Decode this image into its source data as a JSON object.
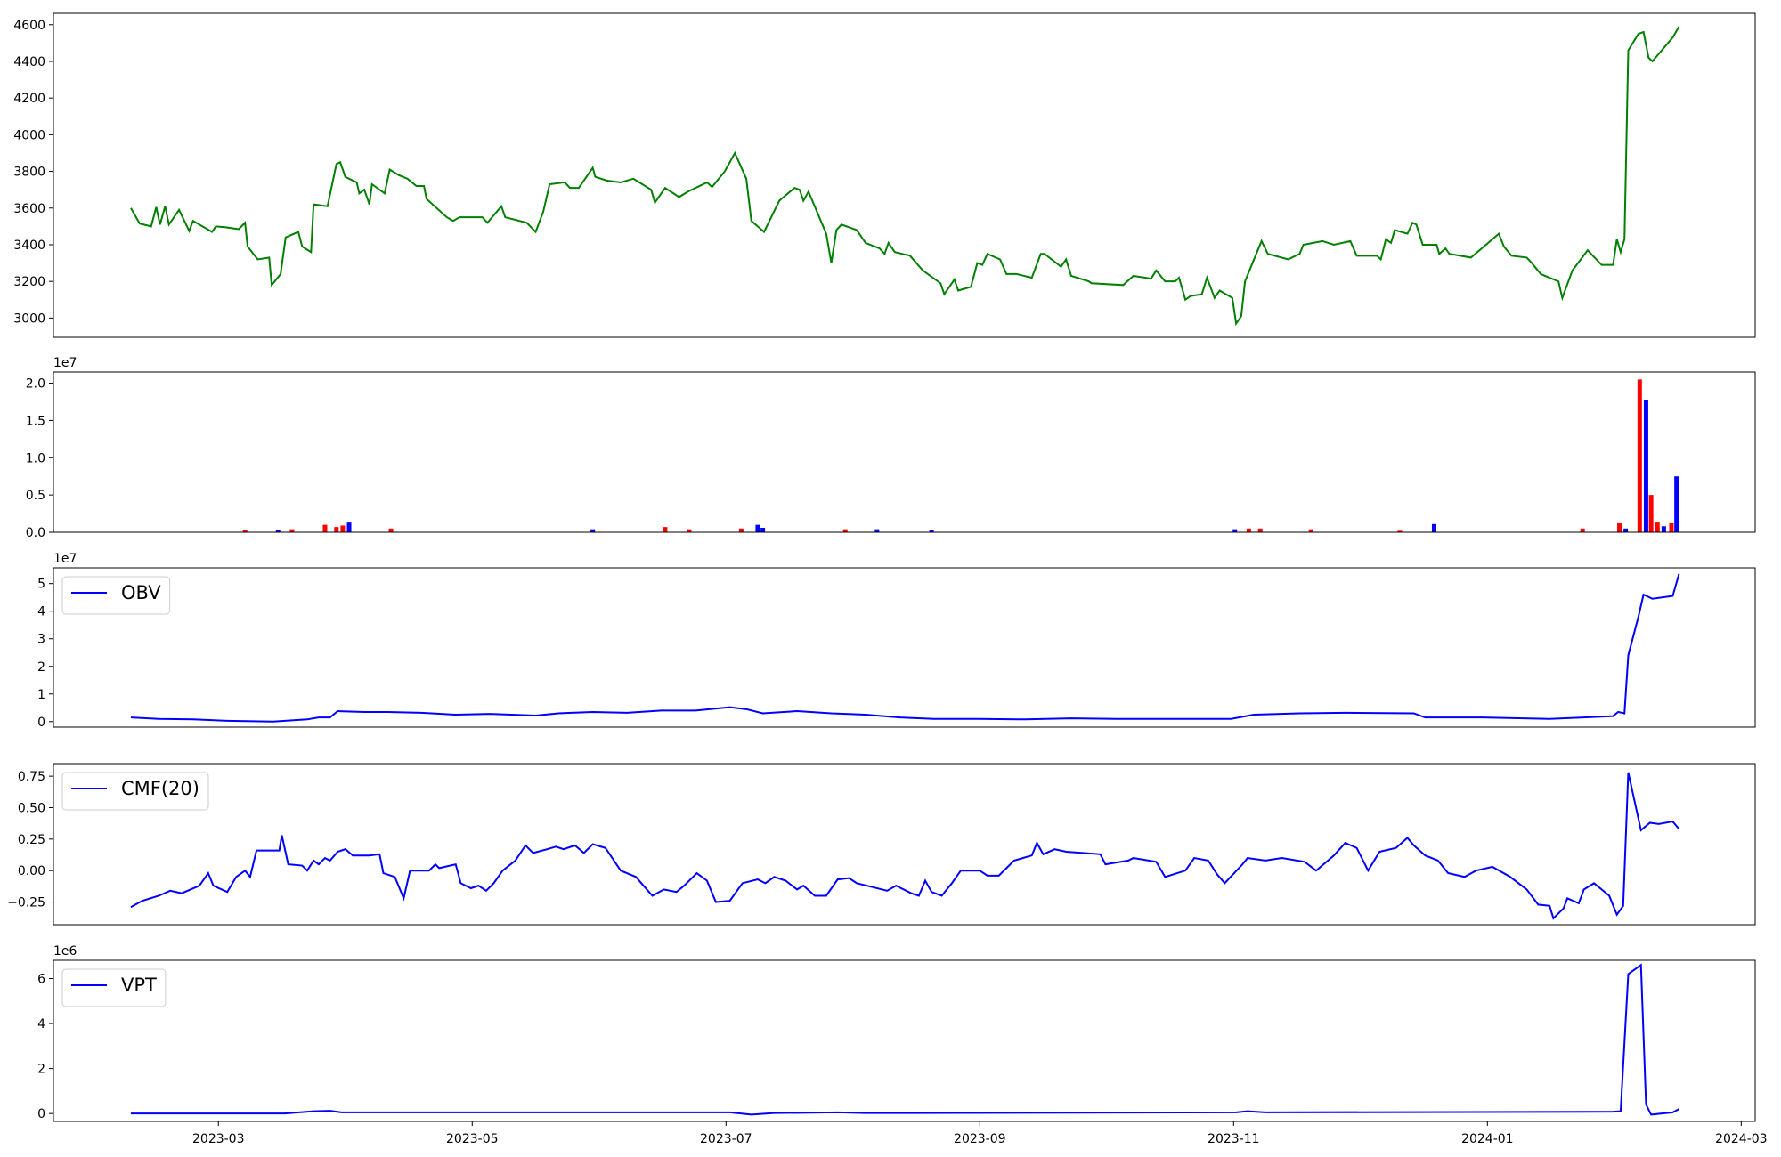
{
  "chart_data": [
    {
      "type": "line",
      "color": "green",
      "x": [
        2.31,
        2.38,
        2.47,
        2.51,
        2.54,
        2.58,
        2.61,
        2.69,
        2.77,
        2.8,
        2.95,
        2.98,
        3.06,
        3.16,
        3.21,
        3.23,
        3.31,
        3.4,
        3.42,
        3.49,
        3.53,
        3.63,
        3.66,
        3.73,
        3.75,
        3.86,
        3.93,
        3.96,
        4.0,
        4.09,
        4.11,
        4.15,
        4.19,
        4.21,
        4.31,
        4.35,
        4.42,
        4.49,
        4.56,
        4.62,
        4.64,
        4.8,
        4.85,
        4.9,
        5.08,
        5.12,
        5.23,
        5.26,
        5.43,
        5.5,
        5.56,
        5.61,
        5.73,
        5.77,
        5.84,
        5.95,
        5.97,
        6.06,
        6.17,
        6.27,
        6.41,
        6.44,
        6.52,
        6.63,
        6.7,
        6.85,
        6.89,
        6.99,
        7.07,
        7.16,
        7.2,
        7.3,
        7.42,
        7.54,
        7.58,
        7.61,
        7.65,
        7.79,
        7.83,
        7.87,
        7.91,
        8.03,
        8.1,
        8.21,
        8.25,
        8.28,
        8.33,
        8.45,
        8.55,
        8.69,
        8.72,
        8.8,
        8.83,
        8.93,
        8.98,
        9.02,
        9.06,
        9.16,
        9.21,
        9.29,
        9.41,
        9.48,
        9.51,
        9.64,
        9.68,
        9.72,
        9.86,
        9.88,
        10.13,
        10.21,
        10.35,
        10.39,
        10.46,
        10.54,
        10.57,
        10.62,
        10.66,
        10.75,
        10.79,
        10.85,
        10.89,
        10.99,
        11.02,
        11.06,
        11.09,
        11.22,
        11.27,
        11.43,
        11.52,
        11.55,
        11.7,
        11.79,
        11.92,
        11.97,
        12.13,
        12.16,
        12.2,
        12.24,
        12.27,
        12.37,
        12.41,
        12.44,
        12.49,
        12.6,
        12.62,
        12.67,
        12.7,
        12.87,
        13.09,
        13.13,
        13.19,
        13.31,
        13.35,
        13.42,
        13.56,
        13.59,
        13.67,
        13.79,
        13.9,
        13.99,
        14.02,
        14.05,
        14.08,
        14.11,
        14.19,
        14.23,
        14.27,
        14.3,
        14.46,
        14.51
      ],
      "values": [
        3600,
        3515,
        3500,
        3605,
        3510,
        3610,
        3510,
        3590,
        3475,
        3530,
        3470,
        3500,
        3495,
        3485,
        3520,
        3390,
        3320,
        3330,
        3180,
        3240,
        3440,
        3470,
        3390,
        3360,
        3620,
        3610,
        3840,
        3850,
        3770,
        3740,
        3680,
        3700,
        3620,
        3730,
        3680,
        3810,
        3780,
        3760,
        3720,
        3720,
        3650,
        3550,
        3530,
        3550,
        3550,
        3520,
        3610,
        3550,
        3520,
        3470,
        3580,
        3730,
        3740,
        3710,
        3710,
        3820,
        3770,
        3750,
        3740,
        3760,
        3700,
        3630,
        3710,
        3660,
        3690,
        3740,
        3715,
        3800,
        3900,
        3760,
        3530,
        3470,
        3640,
        3710,
        3700,
        3640,
        3690,
        3460,
        3300,
        3480,
        3510,
        3480,
        3410,
        3380,
        3350,
        3410,
        3360,
        3340,
        3260,
        3190,
        3130,
        3210,
        3150,
        3170,
        3300,
        3290,
        3350,
        3320,
        3240,
        3240,
        3220,
        3350,
        3350,
        3280,
        3320,
        3230,
        3200,
        3190,
        3180,
        3230,
        3215,
        3260,
        3200,
        3200,
        3220,
        3100,
        3120,
        3130,
        3220,
        3110,
        3150,
        3110,
        2970,
        3010,
        3200,
        3420,
        3350,
        3320,
        3350,
        3400,
        3420,
        3400,
        3420,
        3340,
        3340,
        3320,
        3430,
        3410,
        3480,
        3460,
        3520,
        3510,
        3400,
        3400,
        3350,
        3380,
        3350,
        3330,
        3460,
        3390,
        3340,
        3330,
        3300,
        3240,
        3200,
        3110,
        3260,
        3370,
        3290,
        3290,
        3430,
        3360,
        3430,
        4460,
        4550,
        4560,
        4420,
        4400,
        4530,
        4590
      ],
      "xlim": [
        1.7,
        15.11
      ],
      "ylim": [
        2895,
        4662
      ],
      "yticks": [
        3000,
        3200,
        3400,
        3600,
        3800,
        4000,
        4200,
        4400,
        4600
      ]
    },
    {
      "type": "bar",
      "offset_label": "1e7",
      "x": [
        3.21,
        3.47,
        3.58,
        3.84,
        3.93,
        3.98,
        4.03,
        4.36,
        5.95,
        6.52,
        6.71,
        7.12,
        7.25,
        7.29,
        7.94,
        8.19,
        8.62,
        11.01,
        11.12,
        11.21,
        11.61,
        12.31,
        12.58,
        13.75,
        14.04,
        14.09,
        14.2,
        14.25,
        14.29,
        14.34,
        14.39,
        14.45,
        14.49
      ],
      "values": [
        0.03,
        0.03,
        0.04,
        0.1,
        0.07,
        0.09,
        0.13,
        0.05,
        0.04,
        0.07,
        0.04,
        0.05,
        0.1,
        0.06,
        0.04,
        0.04,
        0.03,
        0.04,
        0.05,
        0.05,
        0.04,
        0.02,
        0.11,
        0.05,
        0.12,
        0.05,
        2.05,
        1.78,
        0.5,
        0.13,
        0.08,
        0.12,
        0.75
      ],
      "colors": [
        "red",
        "blue",
        "red",
        "red",
        "red",
        "red",
        "blue",
        "red",
        "blue",
        "red",
        "red",
        "red",
        "blue",
        "blue",
        "red",
        "blue",
        "blue",
        "blue",
        "red",
        "red",
        "red",
        "red",
        "blue",
        "red",
        "red",
        "blue",
        "red",
        "blue",
        "red",
        "red",
        "blue",
        "red",
        "blue"
      ],
      "xlim": [
        1.7,
        15.11
      ],
      "ylim": [
        0,
        2.15
      ],
      "yticks": [
        {
          "value": 0,
          "label": "0.0"
        },
        0.5,
        {
          "value": 1,
          "label": "1.0"
        },
        1.5,
        {
          "value": 2,
          "label": "2.0"
        }
      ]
    },
    {
      "type": "line",
      "offset_label": "1e7",
      "x": [
        2.31,
        2.53,
        2.8,
        3.07,
        3.43,
        3.7,
        3.79,
        3.88,
        3.94,
        4.15,
        4.33,
        4.6,
        4.87,
        5.14,
        5.5,
        5.68,
        5.95,
        6.22,
        6.49,
        6.76,
        7.03,
        7.16,
        7.29,
        7.56,
        7.83,
        8.1,
        8.37,
        8.64,
        9.0,
        9.36,
        9.72,
        10.08,
        10.62,
        10.98,
        11.16,
        11.52,
        11.88,
        12.42,
        12.51,
        12.96,
        13.49,
        13.76,
        13.99,
        14.03,
        14.08,
        14.11,
        14.19,
        14.23,
        14.3,
        14.46,
        14.51
      ],
      "series": [
        {
          "name": "OBV",
          "color": "blue",
          "values": [
            0.15,
            0.1,
            0.08,
            0.03,
            0.0,
            0.08,
            0.15,
            0.15,
            0.38,
            0.35,
            0.35,
            0.32,
            0.25,
            0.28,
            0.22,
            0.3,
            0.35,
            0.32,
            0.4,
            0.4,
            0.52,
            0.45,
            0.3,
            0.38,
            0.3,
            0.25,
            0.15,
            0.1,
            0.1,
            0.08,
            0.12,
            0.1,
            0.1,
            0.1,
            0.25,
            0.3,
            0.32,
            0.3,
            0.15,
            0.15,
            0.1,
            0.15,
            0.2,
            0.35,
            0.3,
            2.4,
            3.8,
            4.6,
            4.45,
            4.55,
            5.35
          ]
        }
      ],
      "legend": "upper left",
      "xlim": [
        1.7,
        15.11
      ],
      "ylim": [
        -0.2,
        5.57
      ],
      "yticks": [
        0,
        1,
        2,
        3,
        4,
        5
      ]
    },
    {
      "type": "line",
      "x": [
        2.31,
        2.4,
        2.53,
        2.62,
        2.71,
        2.85,
        2.92,
        2.96,
        3.07,
        3.14,
        3.21,
        3.25,
        3.3,
        3.48,
        3.5,
        3.55,
        3.66,
        3.7,
        3.75,
        3.79,
        3.84,
        3.88,
        3.94,
        4.0,
        4.06,
        4.19,
        4.27,
        4.3,
        4.39,
        4.46,
        4.51,
        4.66,
        4.71,
        4.74,
        4.87,
        4.91,
        4.99,
        5.05,
        5.11,
        5.17,
        5.24,
        5.34,
        5.42,
        5.48,
        5.59,
        5.66,
        5.72,
        5.81,
        5.88,
        5.95,
        6.05,
        6.17,
        6.29,
        6.35,
        6.42,
        6.51,
        6.61,
        6.67,
        6.77,
        6.85,
        6.92,
        7.03,
        7.13,
        7.25,
        7.31,
        7.38,
        7.47,
        7.56,
        7.61,
        7.7,
        7.79,
        7.88,
        7.97,
        8.03,
        8.15,
        8.27,
        8.34,
        8.46,
        8.52,
        8.57,
        8.62,
        8.7,
        8.78,
        8.85,
        9.0,
        9.06,
        9.15,
        9.27,
        9.41,
        9.45,
        9.5,
        9.59,
        9.68,
        9.95,
        9.99,
        10.17,
        10.21,
        10.39,
        10.46,
        10.62,
        10.69,
        10.8,
        10.87,
        10.93,
        11.07,
        11.11,
        11.25,
        11.38,
        11.56,
        11.65,
        11.79,
        11.88,
        11.97,
        12.06,
        12.15,
        12.28,
        12.37,
        12.42,
        12.51,
        12.61,
        12.69,
        12.82,
        12.91,
        13.04,
        13.18,
        13.31,
        13.4,
        13.49,
        13.52,
        13.6,
        13.63,
        13.72,
        13.76,
        13.84,
        13.9,
        13.96,
        14.02,
        14.07,
        14.11,
        14.21,
        14.28,
        14.35,
        14.46,
        14.51
      ],
      "series": [
        {
          "name": "CMF(20)",
          "color": "blue",
          "values": [
            -0.29,
            -0.24,
            -0.2,
            -0.16,
            -0.18,
            -0.12,
            -0.02,
            -0.12,
            -0.17,
            -0.05,
            0.0,
            -0.05,
            0.16,
            0.16,
            0.28,
            0.05,
            0.04,
            0.0,
            0.08,
            0.05,
            0.1,
            0.08,
            0.15,
            0.17,
            0.12,
            0.12,
            0.13,
            -0.02,
            -0.05,
            -0.22,
            0.0,
            0.0,
            0.05,
            0.02,
            0.05,
            -0.1,
            -0.14,
            -0.12,
            -0.16,
            -0.1,
            0.0,
            0.08,
            0.2,
            0.14,
            0.17,
            0.19,
            0.17,
            0.2,
            0.14,
            0.21,
            0.18,
            0.0,
            -0.05,
            -0.12,
            -0.2,
            -0.15,
            -0.17,
            -0.12,
            -0.02,
            -0.08,
            -0.25,
            -0.24,
            -0.1,
            -0.07,
            -0.1,
            -0.05,
            -0.08,
            -0.15,
            -0.12,
            -0.2,
            -0.2,
            -0.07,
            -0.06,
            -0.1,
            -0.13,
            -0.16,
            -0.12,
            -0.18,
            -0.2,
            -0.08,
            -0.17,
            -0.2,
            -0.1,
            0.0,
            0.0,
            -0.04,
            -0.04,
            0.08,
            0.12,
            0.22,
            0.13,
            0.17,
            0.15,
            0.13,
            0.05,
            0.08,
            0.1,
            0.07,
            -0.05,
            0.0,
            0.1,
            0.08,
            -0.03,
            -0.1,
            0.05,
            0.1,
            0.08,
            0.1,
            0.07,
            0.0,
            0.12,
            0.22,
            0.18,
            0.0,
            0.15,
            0.18,
            0.26,
            0.2,
            0.12,
            0.08,
            -0.02,
            -0.05,
            0.0,
            0.03,
            -0.05,
            -0.15,
            -0.27,
            -0.28,
            -0.38,
            -0.3,
            -0.22,
            -0.26,
            -0.15,
            -0.1,
            -0.15,
            -0.2,
            -0.35,
            -0.28,
            0.78,
            0.32,
            0.38,
            0.37,
            0.39,
            0.33
          ]
        }
      ],
      "legend": "upper left",
      "xlim": [
        1.7,
        15.11
      ],
      "ylim": [
        -0.43,
        0.85
      ],
      "yticks": [
        {
          "value": -0.25,
          "label": "−0.25"
        },
        {
          "value": 0,
          "label": "0.00"
        },
        0.25,
        {
          "value": 0.5,
          "label": "0.50"
        },
        0.75
      ]
    },
    {
      "type": "line",
      "offset_label": "1e6",
      "x": [
        2.31,
        3.52,
        3.75,
        3.88,
        3.97,
        5.59,
        7.03,
        7.2,
        7.38,
        7.88,
        8.1,
        11.02,
        11.11,
        11.25,
        13.99,
        14.05,
        14.11,
        14.21,
        14.25,
        14.29,
        14.46,
        14.51
      ],
      "series": [
        {
          "name": "VPT",
          "color": "blue",
          "values": [
            0.0,
            0.0,
            0.1,
            0.12,
            0.05,
            0.05,
            0.05,
            -0.05,
            0.02,
            0.05,
            0.02,
            0.05,
            0.1,
            0.05,
            0.08,
            0.1,
            6.2,
            6.6,
            0.4,
            -0.05,
            0.05,
            0.2
          ]
        }
      ],
      "legend": "upper left",
      "xlim": [
        1.7,
        15.11
      ],
      "ylim": [
        -0.35,
        6.81
      ],
      "yticks": [
        0,
        2,
        4,
        6
      ],
      "xticks": [
        {
          "value": 3,
          "label": "2023-03"
        },
        {
          "value": 5,
          "label": "2023-05"
        },
        {
          "value": 7,
          "label": "2023-07"
        },
        {
          "value": 9,
          "label": "2023-09"
        },
        {
          "value": 11,
          "label": "2023-11"
        },
        {
          "value": 13,
          "label": "2024-01"
        },
        {
          "value": 15,
          "label": "2024-03"
        }
      ]
    }
  ]
}
